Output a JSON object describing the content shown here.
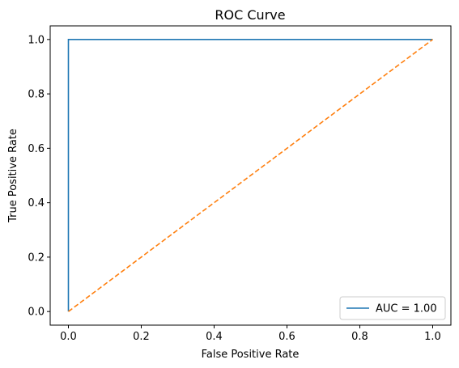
{
  "chart_data": {
    "type": "line",
    "title": "ROC Curve",
    "xlabel": "False Positive Rate",
    "ylabel": "True Positive Rate",
    "xlim": [
      -0.05,
      1.05
    ],
    "ylim": [
      -0.05,
      1.05
    ],
    "xticks": [
      0.0,
      0.2,
      0.4,
      0.6,
      0.8,
      1.0
    ],
    "yticks": [
      0.0,
      0.2,
      0.4,
      0.6,
      0.8,
      1.0
    ],
    "xtick_labels": [
      "0.0",
      "0.2",
      "0.4",
      "0.6",
      "0.8",
      "1.0"
    ],
    "ytick_labels": [
      "0.0",
      "0.2",
      "0.4",
      "0.6",
      "0.8",
      "1.0"
    ],
    "grid": false,
    "legend_position": "lower-right",
    "series": [
      {
        "name": "AUC = 1.00",
        "color": "#1f77b4",
        "style": "solid",
        "x": [
          0.0,
          0.0,
          1.0
        ],
        "y": [
          0.0,
          1.0,
          1.0
        ]
      },
      {
        "color": "#ff7f0e",
        "style": "dashed",
        "x": [
          0.0,
          1.0
        ],
        "y": [
          0.0,
          1.0
        ]
      }
    ]
  }
}
